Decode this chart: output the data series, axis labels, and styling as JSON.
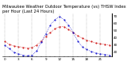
{
  "title": "Milwaukee Weather Outdoor Temperature (vs) THSW Index per Hour (Last 24 Hours)",
  "hours": [
    0,
    1,
    2,
    3,
    4,
    5,
    6,
    7,
    8,
    9,
    10,
    11,
    12,
    13,
    14,
    15,
    16,
    17,
    18,
    19,
    20,
    21,
    22,
    23
  ],
  "temp": [
    35,
    31,
    29,
    28,
    27,
    26,
    27,
    30,
    36,
    42,
    48,
    53,
    56,
    56,
    52,
    48,
    43,
    40,
    37,
    35,
    33,
    32,
    31,
    30
  ],
  "thsw": [
    30,
    25,
    20,
    18,
    16,
    15,
    16,
    22,
    34,
    46,
    58,
    66,
    70,
    66,
    58,
    48,
    36,
    28,
    24,
    21,
    19,
    18,
    17,
    16
  ],
  "temp_color": "#cc0000",
  "thsw_color": "#0000cc",
  "bg_color": "#ffffff",
  "grid_color": "#888888",
  "ylim_min": 14,
  "ylim_max": 74,
  "ytick_values": [
    20,
    30,
    40,
    50,
    60,
    70
  ],
  "ytick_labels": [
    "20",
    "30",
    "40",
    "50",
    "60",
    "70"
  ],
  "title_fontsize": 3.8,
  "tick_fontsize": 3.0,
  "line_width": 0.5,
  "marker_size": 1.0
}
